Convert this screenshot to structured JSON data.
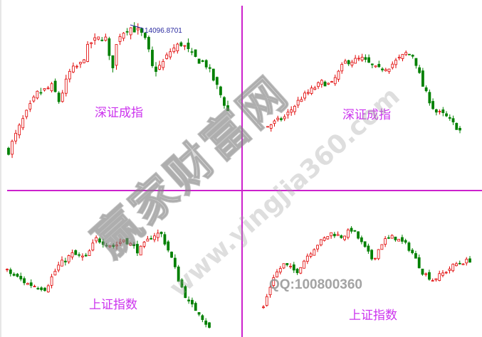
{
  "chart_data": [
    {
      "type": "candlestick",
      "label": "深证成指",
      "annotation": "14096.8701",
      "candles": 62,
      "trend": [
        [
          0,
          0
        ],
        [
          0.06,
          23
        ],
        [
          0.13,
          46
        ],
        [
          0.2,
          52
        ],
        [
          0.23,
          40
        ],
        [
          0.28,
          64
        ],
        [
          0.33,
          70
        ],
        [
          0.37,
          87
        ],
        [
          0.44,
          93
        ],
        [
          0.47,
          64
        ],
        [
          0.5,
          93
        ],
        [
          0.55,
          100
        ],
        [
          0.6,
          96
        ],
        [
          0.63,
          87
        ],
        [
          0.66,
          64
        ],
        [
          0.7,
          70
        ],
        [
          0.74,
          81
        ],
        [
          0.79,
          87
        ],
        [
          0.84,
          76
        ],
        [
          0.9,
          70
        ],
        [
          0.95,
          52
        ],
        [
          1,
          32
        ]
      ]
    },
    {
      "type": "candlestick",
      "label": "深证成指",
      "candles": 58,
      "trend": [
        [
          0,
          10
        ],
        [
          0.09,
          20
        ],
        [
          0.17,
          40
        ],
        [
          0.28,
          58
        ],
        [
          0.33,
          55
        ],
        [
          0.4,
          80
        ],
        [
          0.49,
          84
        ],
        [
          0.57,
          72
        ],
        [
          0.63,
          75
        ],
        [
          0.72,
          90
        ],
        [
          0.76,
          87
        ],
        [
          0.81,
          52
        ],
        [
          0.87,
          26
        ],
        [
          0.92,
          22
        ],
        [
          1,
          5
        ]
      ]
    },
    {
      "type": "candlestick",
      "label": "上证指数",
      "candles": 60,
      "trend": [
        [
          0,
          60
        ],
        [
          0.1,
          47
        ],
        [
          0.19,
          42
        ],
        [
          0.25,
          65
        ],
        [
          0.32,
          78
        ],
        [
          0.39,
          74
        ],
        [
          0.44,
          94
        ],
        [
          0.53,
          86
        ],
        [
          0.58,
          94
        ],
        [
          0.65,
          81
        ],
        [
          0.72,
          98
        ],
        [
          0.76,
          100
        ],
        [
          0.81,
          76
        ],
        [
          0.85,
          50
        ],
        [
          0.9,
          26
        ],
        [
          0.95,
          17
        ],
        [
          1,
          0
        ]
      ]
    },
    {
      "type": "candlestick",
      "label": "上证指数",
      "candles": 62,
      "trend": [
        [
          0,
          0
        ],
        [
          0.05,
          40
        ],
        [
          0.1,
          55
        ],
        [
          0.16,
          45
        ],
        [
          0.21,
          65
        ],
        [
          0.26,
          80
        ],
        [
          0.33,
          95
        ],
        [
          0.38,
          90
        ],
        [
          0.43,
          100
        ],
        [
          0.48,
          80
        ],
        [
          0.53,
          60
        ],
        [
          0.58,
          85
        ],
        [
          0.63,
          90
        ],
        [
          0.69,
          80
        ],
        [
          0.72,
          70
        ],
        [
          0.77,
          45
        ],
        [
          0.82,
          35
        ],
        [
          0.88,
          45
        ],
        [
          0.93,
          55
        ],
        [
          1,
          60
        ]
      ]
    }
  ],
  "watermark": {
    "brand": "赢家财富网",
    "url": "www.yingjia360.com",
    "qq": "QQ:100800360"
  },
  "colors": {
    "up": "#e00000",
    "down": "#008000",
    "divider": "#cc22cc",
    "label": "#cc33ee"
  }
}
